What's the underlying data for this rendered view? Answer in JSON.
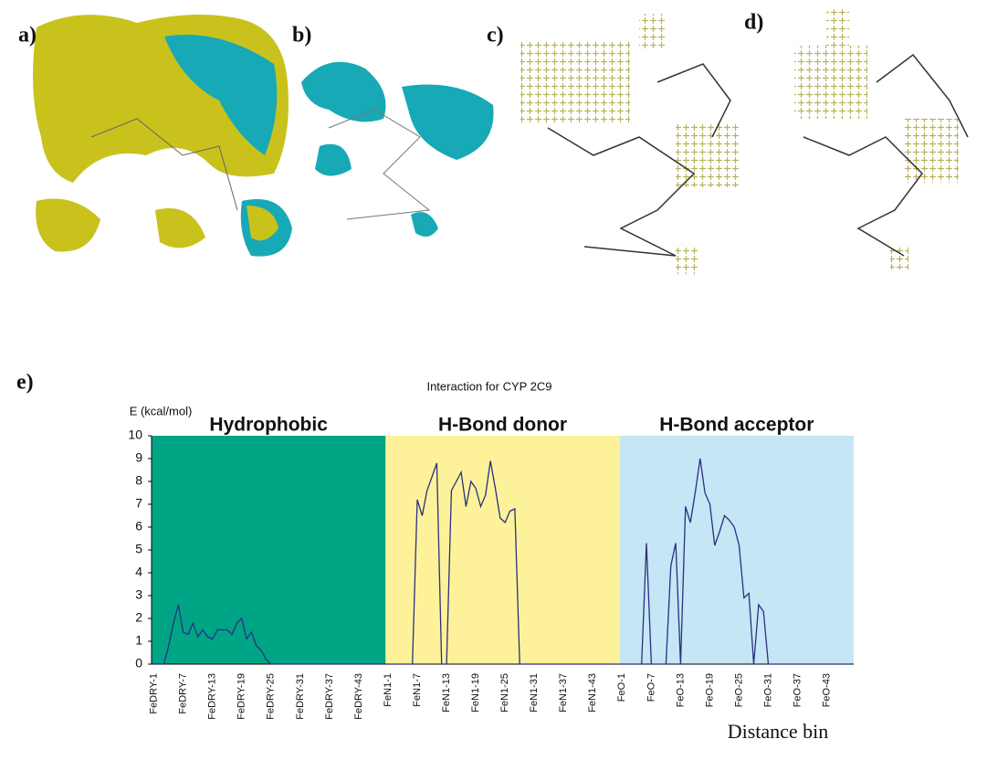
{
  "panel_labels": [
    "a)",
    "b)",
    "c)",
    "d)",
    "e)"
  ],
  "chart_data": {
    "type": "line",
    "title": "Interaction for CYP 2C9",
    "y_label": "E (kcal/mol)",
    "x_label": "Distance bin",
    "ylim": [
      0,
      10
    ],
    "yticks": [
      0,
      1,
      2,
      3,
      4,
      5,
      6,
      7,
      8,
      9,
      10
    ],
    "line_color": "#2b2f80",
    "groups": [
      {
        "name": "Hydrophobic",
        "color": "#00a585",
        "categories": [
          "FeDRY-1",
          null,
          null,
          null,
          null,
          null,
          "FeDRY-7",
          null,
          null,
          null,
          null,
          null,
          "FeDRY-13",
          null,
          null,
          null,
          null,
          null,
          "FeDRY-19",
          null,
          null,
          null,
          null,
          null,
          "FeDRY-25",
          null,
          null,
          null,
          null,
          null,
          "FeDRY-31",
          null,
          null,
          null,
          null,
          null,
          "FeDRY-37",
          null,
          null,
          null,
          null,
          null,
          "FeDRY-43",
          null,
          null,
          null,
          null,
          null
        ],
        "values": [
          0,
          0,
          0,
          0.8,
          1.8,
          2.6,
          1.4,
          1.3,
          1.8,
          1.2,
          1.5,
          1.2,
          1.1,
          1.5,
          1.5,
          1.5,
          1.3,
          1.8,
          2.0,
          1.1,
          1.4,
          0.8,
          0.6,
          0.2,
          0,
          0,
          0,
          0,
          0,
          0,
          0,
          0,
          0,
          0,
          0,
          0,
          0,
          0,
          0,
          0,
          0,
          0,
          0,
          0,
          0,
          0,
          0,
          0
        ]
      },
      {
        "name": "H-Bond donor",
        "color": "#fdf29a",
        "categories": [
          "FeN1-1",
          null,
          null,
          null,
          null,
          null,
          "FeN1-7",
          null,
          null,
          null,
          null,
          null,
          "FeN1-13",
          null,
          null,
          null,
          null,
          null,
          "FeN1-19",
          null,
          null,
          null,
          null,
          null,
          "FeN1-25",
          null,
          null,
          null,
          null,
          null,
          "FeN1-31",
          null,
          null,
          null,
          null,
          null,
          "FeN1-37",
          null,
          null,
          null,
          null,
          null,
          "FeN1-43",
          null,
          null,
          null,
          null,
          null
        ],
        "values": [
          0,
          0,
          0,
          0,
          0,
          0,
          7.2,
          6.5,
          7.6,
          8.2,
          8.8,
          0,
          0,
          7.6,
          8.0,
          8.4,
          6.9,
          8.0,
          7.7,
          6.9,
          7.4,
          8.9,
          7.7,
          6.4,
          6.2,
          6.7,
          6.8,
          0,
          0,
          0,
          0,
          0,
          0,
          0,
          0,
          0,
          0,
          0,
          0,
          0,
          0,
          0,
          0,
          0,
          0,
          0,
          0,
          0
        ]
      },
      {
        "name": "H-Bond acceptor",
        "color": "#c5e6f5",
        "categories": [
          "FeO-1",
          null,
          null,
          null,
          null,
          null,
          "FeO-7",
          null,
          null,
          null,
          null,
          null,
          "FeO-13",
          null,
          null,
          null,
          null,
          null,
          "FeO-19",
          null,
          null,
          null,
          null,
          null,
          "FeO-25",
          null,
          null,
          null,
          null,
          null,
          "FeO-31",
          null,
          null,
          null,
          null,
          null,
          "FeO-37",
          null,
          null,
          null,
          null,
          null,
          "FeO-43",
          null,
          null,
          null,
          null,
          null
        ],
        "values": [
          0,
          0,
          0,
          0,
          0,
          5.3,
          0,
          0,
          0,
          0,
          4.3,
          5.3,
          0,
          6.9,
          6.2,
          7.5,
          9.0,
          7.5,
          7.0,
          5.2,
          5.8,
          6.5,
          6.3,
          6.0,
          5.2,
          2.9,
          3.1,
          0,
          2.6,
          2.3,
          0,
          0,
          0,
          0,
          0,
          0,
          0,
          0,
          0,
          0,
          0,
          0,
          0,
          0,
          0,
          0,
          0,
          0
        ]
      }
    ]
  }
}
